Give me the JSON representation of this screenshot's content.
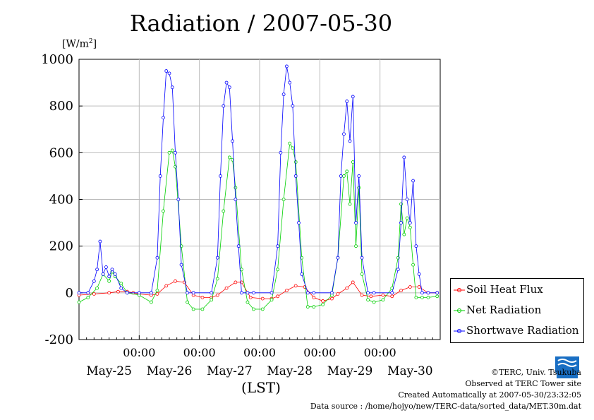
{
  "header": {
    "title": "Radiation / 2007-05-30",
    "unit_main": "[W/m",
    "unit_sup": "2",
    "unit_close": "]"
  },
  "chart_data": {
    "type": "line",
    "title": "Radiation / 2007-05-30",
    "ylabel": "[W/m2]",
    "xlabel": "(LST)",
    "ylim": [
      -200,
      1000
    ],
    "yticks": [
      "1000",
      "800",
      "600",
      "400",
      "200",
      "0",
      "-200"
    ],
    "xlim_days": [
      0,
      6
    ],
    "day_labels": [
      "May-25",
      "May-26",
      "May-27",
      "May-28",
      "May-29",
      "May-30"
    ],
    "midnight_labels": [
      "00:00",
      "00:00",
      "00:00",
      "00:00",
      "00:00"
    ],
    "grid": true,
    "legend_position": "bottom-right",
    "series": [
      {
        "name": "Soil Heat Flux",
        "color": "#ff0000",
        "x": [
          0,
          0.25,
          0.5,
          0.65,
          0.8,
          0.9,
          1.0,
          1.2,
          1.3,
          1.45,
          1.6,
          1.75,
          1.9,
          2.05,
          2.2,
          2.3,
          2.45,
          2.6,
          2.7,
          2.85,
          3.05,
          3.2,
          3.3,
          3.45,
          3.6,
          3.75,
          3.9,
          4.05,
          4.2,
          4.3,
          4.45,
          4.55,
          4.7,
          4.85,
          5.05,
          5.2,
          5.35,
          5.5,
          5.65,
          5.8,
          5.95
        ],
        "y": [
          -10,
          -5,
          0,
          5,
          5,
          0,
          -5,
          -10,
          -5,
          30,
          50,
          45,
          -10,
          -20,
          -20,
          -10,
          20,
          45,
          45,
          -20,
          -25,
          -25,
          -15,
          10,
          30,
          25,
          -20,
          -35,
          -25,
          -5,
          20,
          45,
          -10,
          -15,
          -10,
          -15,
          10,
          25,
          25,
          0,
          0
        ]
      },
      {
        "name": "Net Radiation",
        "color": "#00d000",
        "x": [
          0,
          0.15,
          0.3,
          0.4,
          0.5,
          0.55,
          0.6,
          0.7,
          0.8,
          1.0,
          1.2,
          1.3,
          1.4,
          1.5,
          1.55,
          1.6,
          1.7,
          1.8,
          1.9,
          2.05,
          2.2,
          2.3,
          2.4,
          2.5,
          2.55,
          2.6,
          2.7,
          2.8,
          2.9,
          3.05,
          3.2,
          3.3,
          3.4,
          3.5,
          3.55,
          3.6,
          3.7,
          3.8,
          3.9,
          4.05,
          4.2,
          4.3,
          4.4,
          4.45,
          4.5,
          4.55,
          4.6,
          4.65,
          4.7,
          4.8,
          4.9,
          5.05,
          5.2,
          5.3,
          5.35,
          5.4,
          5.45,
          5.5,
          5.55,
          5.6,
          5.7,
          5.8,
          5.95
        ],
        "y": [
          -40,
          -20,
          20,
          80,
          50,
          90,
          70,
          40,
          0,
          -10,
          -40,
          10,
          350,
          600,
          610,
          540,
          200,
          -40,
          -70,
          -70,
          -30,
          60,
          350,
          580,
          570,
          450,
          100,
          -40,
          -70,
          -70,
          -30,
          100,
          400,
          640,
          620,
          560,
          150,
          -60,
          -60,
          -50,
          -10,
          150,
          500,
          520,
          380,
          560,
          200,
          450,
          80,
          -30,
          -40,
          -30,
          20,
          150,
          380,
          250,
          320,
          280,
          120,
          -20,
          -20,
          -20,
          -15
        ]
      },
      {
        "name": "Shortwave Radiation",
        "color": "#0000ff",
        "x": [
          0,
          0.15,
          0.25,
          0.3,
          0.35,
          0.4,
          0.45,
          0.5,
          0.55,
          0.6,
          0.7,
          0.8,
          1.0,
          1.2,
          1.3,
          1.35,
          1.4,
          1.45,
          1.5,
          1.55,
          1.6,
          1.65,
          1.7,
          1.8,
          1.9,
          2.2,
          2.3,
          2.35,
          2.4,
          2.45,
          2.5,
          2.55,
          2.6,
          2.65,
          2.7,
          2.8,
          2.9,
          3.2,
          3.3,
          3.35,
          3.4,
          3.45,
          3.5,
          3.55,
          3.6,
          3.65,
          3.7,
          3.8,
          3.9,
          4.2,
          4.3,
          4.35,
          4.4,
          4.45,
          4.5,
          4.55,
          4.6,
          4.65,
          4.7,
          4.8,
          4.9,
          5.2,
          5.3,
          5.35,
          5.4,
          5.45,
          5.5,
          5.55,
          5.6,
          5.65,
          5.7,
          5.8,
          5.95
        ],
        "y": [
          0,
          0,
          50,
          100,
          220,
          80,
          110,
          70,
          100,
          80,
          20,
          0,
          0,
          0,
          150,
          500,
          750,
          950,
          940,
          880,
          600,
          400,
          120,
          0,
          0,
          0,
          150,
          500,
          800,
          900,
          880,
          650,
          400,
          200,
          0,
          0,
          0,
          0,
          200,
          600,
          850,
          970,
          900,
          800,
          500,
          300,
          80,
          0,
          0,
          0,
          150,
          500,
          680,
          820,
          650,
          840,
          300,
          500,
          150,
          0,
          0,
          0,
          100,
          300,
          580,
          400,
          300,
          480,
          200,
          80,
          0,
          0,
          0
        ]
      }
    ]
  },
  "legend": {
    "items": [
      "Soil Heat Flux",
      "Net Radiation",
      "Shortwave Radiation"
    ]
  },
  "footer": {
    "x_unit": "(LST)",
    "credit_org": "©TERC, Univ. Tsukuba",
    "credit_site": "Observed at TERC Tower site",
    "created": "Created Automatically at 2007-05-30/23:32:05",
    "source": "Data source : /home/hojyo/new/TERC-data/sorted_data/MET.30m.dat"
  }
}
